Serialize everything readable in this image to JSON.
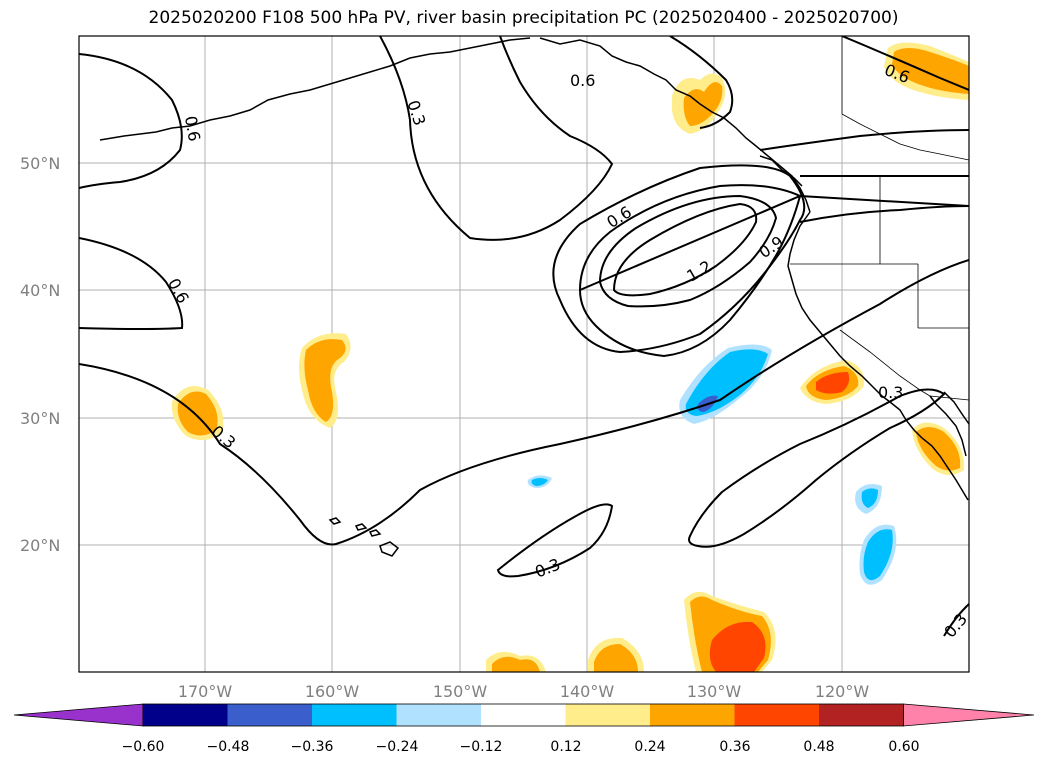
{
  "title": "2025020200 F108 500 hPa PV, river basin precipitation PC (2025020400 - 2025020700)",
  "latitude_labels": [
    "50°N",
    "40°N",
    "30°N",
    "20°N"
  ],
  "longitude_labels": [
    "170°W",
    "160°W",
    "150°W",
    "140°W",
    "130°W",
    "120°W"
  ],
  "contour_labels": [
    "0.6",
    "0.3",
    "0.6",
    "0.6",
    "0.3",
    "0.6",
    "0.6",
    "0.9",
    "1.2",
    "0.3",
    "0.3",
    "0.3"
  ],
  "colorbar": {
    "tick_labels": [
      "−0.60",
      "−0.48",
      "−0.36",
      "−0.24",
      "−0.12",
      "0.12",
      "0.24",
      "0.36",
      "0.48",
      "0.60"
    ],
    "colors": [
      "#9932cc",
      "#00008b",
      "#3a5fcd",
      "#00bfff",
      "#b0e2ff",
      "#ffffff",
      "#ffec8b",
      "#ffa500",
      "#ff4500",
      "#b22222",
      "#ff82ab"
    ]
  },
  "palette": {
    "light_yellow": "#ffec8b",
    "orange": "#ffa500",
    "red_orange": "#ff4500",
    "deep_sky_blue": "#00bfff",
    "light_sky_blue": "#b0e2ff",
    "royal_blue": "#3a5fcd",
    "grid": "#b0b0b0",
    "tick_text": "#808080"
  }
}
